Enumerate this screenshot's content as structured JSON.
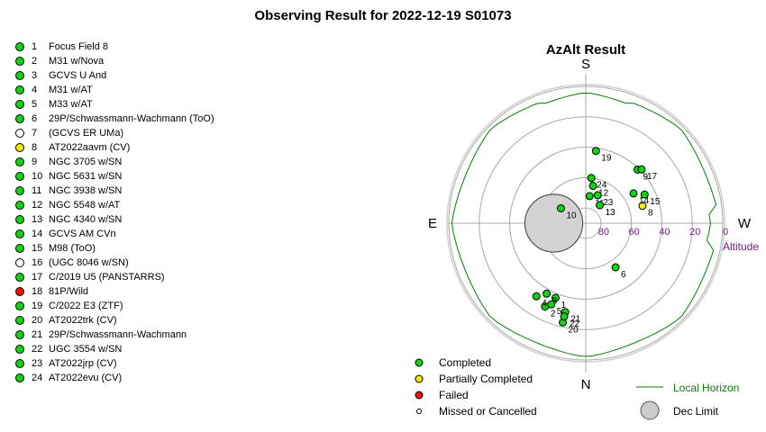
{
  "title": "Observing Result for 2022-12-19 S01073",
  "status_colors": {
    "Completed": "#12d312",
    "Partially Completed": "#f7e90e",
    "Failed": "#e8150f",
    "Missed or Cancelled": "#ffffff"
  },
  "targets": [
    {
      "num": "1",
      "name": "Focus Field 8",
      "status": "Completed"
    },
    {
      "num": "2",
      "name": "M31 w/Nova",
      "status": "Completed"
    },
    {
      "num": "3",
      "name": "GCVS U And",
      "status": "Completed"
    },
    {
      "num": "4",
      "name": "M31 w/AT",
      "status": "Completed"
    },
    {
      "num": "5",
      "name": "M33 w/AT",
      "status": "Completed"
    },
    {
      "num": "6",
      "name": "29P/Schwassmann-Wachmann (ToO)",
      "status": "Completed"
    },
    {
      "num": "7",
      "name": " (GCVS ER UMa)",
      "status": "Missed or Cancelled"
    },
    {
      "num": "8",
      "name": "AT2022aavm (CV)",
      "status": "Partially Completed"
    },
    {
      "num": "9",
      "name": "NGC 3705 w/SN",
      "status": "Completed"
    },
    {
      "num": "10",
      "name": "NGC 5631 w/SN",
      "status": "Completed"
    },
    {
      "num": "11",
      "name": "NGC 3938 w/SN",
      "status": "Completed"
    },
    {
      "num": "12",
      "name": "NGC 5548 w/AT",
      "status": "Completed"
    },
    {
      "num": "13",
      "name": "NGC 4340 w/SN",
      "status": "Completed"
    },
    {
      "num": "14",
      "name": "GCVS AM CVn",
      "status": "Completed"
    },
    {
      "num": "15",
      "name": "M98 (ToO)",
      "status": "Completed"
    },
    {
      "num": "16",
      "name": " (UGC 8046 w/SN)",
      "status": "Missed or Cancelled"
    },
    {
      "num": "17",
      "name": "C/2019 U5 (PANSTARRS)",
      "status": "Completed"
    },
    {
      "num": "18",
      "name": "81P/Wild",
      "status": "Failed"
    },
    {
      "num": "19",
      "name": "C/2022 E3 (ZTF)",
      "status": "Completed"
    },
    {
      "num": "20",
      "name": "AT2022trk (CV)",
      "status": "Completed"
    },
    {
      "num": "21",
      "name": "29P/Schwassmann-Wachmann",
      "status": "Completed"
    },
    {
      "num": "22",
      "name": "UGC 3554 w/SN",
      "status": "Completed"
    },
    {
      "num": "23",
      "name": "AT2022jrp (CV)",
      "status": "Completed"
    },
    {
      "num": "24",
      "name": "AT2022evu (CV)",
      "status": "Completed"
    }
  ],
  "chart_data": {
    "type": "scatter",
    "subtype": "polar-azalt",
    "title": "AzAlt Result",
    "directions": {
      "top": "S",
      "bottom": "N",
      "left": "E",
      "right": "W"
    },
    "altitude_label": "Altitude",
    "altitude_ticks": [
      {
        "value": 0,
        "label": "0"
      },
      {
        "value": 20,
        "label": "20"
      },
      {
        "value": 40,
        "label": "40"
      },
      {
        "value": 60,
        "label": "60"
      },
      {
        "value": 80,
        "label": "80"
      }
    ],
    "alt_range": [
      0,
      90
    ],
    "az_convention": "azimuth from North through East in degrees; chart top = South, left = East",
    "points": [
      {
        "label": "1",
        "az": 292,
        "alt": 37,
        "status": "Completed"
      },
      {
        "label": "2",
        "az": 296,
        "alt": 29,
        "status": "Completed"
      },
      {
        "label": "3",
        "az": 299,
        "alt": 37,
        "status": "Completed"
      },
      {
        "label": "4",
        "az": 304,
        "alt": 32,
        "status": "Completed"
      },
      {
        "label": "5",
        "az": 293,
        "alt": 32,
        "status": "Completed"
      },
      {
        "label": "6",
        "az": 236,
        "alt": 55,
        "status": "Completed"
      },
      {
        "label": "8",
        "az": 163,
        "alt": 51,
        "status": "Partially Completed"
      },
      {
        "label": "9",
        "az": 134,
        "alt": 41,
        "status": "Completed"
      },
      {
        "label": "10",
        "az": 31,
        "alt": 71,
        "status": "Completed"
      },
      {
        "label": "11",
        "az": 98,
        "alt": 72,
        "status": "Completed"
      },
      {
        "label": "12",
        "az": 101,
        "alt": 65,
        "status": "Completed"
      },
      {
        "label": "13",
        "az": 128,
        "alt": 75,
        "status": "Completed"
      },
      {
        "label": "14",
        "az": 148,
        "alt": 53,
        "status": "Completed"
      },
      {
        "label": "15",
        "az": 154,
        "alt": 47,
        "status": "Completed"
      },
      {
        "label": "17",
        "az": 136,
        "alt": 39,
        "status": "Completed"
      },
      {
        "label": "19",
        "az": 98,
        "alt": 42,
        "status": "Completed"
      },
      {
        "label": "20",
        "az": 283,
        "alt": 23,
        "status": "Completed"
      },
      {
        "label": "21",
        "az": 283,
        "alt": 30,
        "status": "Completed"
      },
      {
        "label": "22",
        "az": 283,
        "alt": 27,
        "status": "Completed"
      },
      {
        "label": "23",
        "az": 113,
        "alt": 70,
        "status": "Completed"
      },
      {
        "label": "24",
        "az": 97,
        "alt": 60,
        "status": "Completed"
      }
    ],
    "dec_limit": {
      "center_az": 0,
      "center_alt": 69,
      "radius_deg": 19
    },
    "legend": [
      {
        "label": "Completed",
        "status": "Completed"
      },
      {
        "label": "Partially Completed",
        "status": "Partially Completed"
      },
      {
        "label": "Failed",
        "status": "Failed"
      },
      {
        "label": "Missed or Cancelled",
        "status": "Missed or Cancelled"
      }
    ],
    "legend_right": [
      {
        "label": "Local Horizon",
        "kind": "line",
        "color": "#0a7a0a"
      },
      {
        "label": "Dec Limit",
        "kind": "disc",
        "color": "#cccccc"
      }
    ],
    "grid": true
  }
}
